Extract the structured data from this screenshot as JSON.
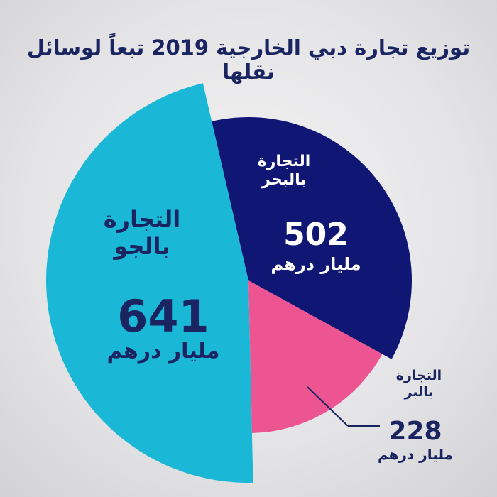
{
  "chart_data": {
    "type": "pie",
    "title": "توزيع تجارة دبي الخارجية 2019 تبعاً لوسائل نقلها",
    "unit": "مليار درهم",
    "slices": [
      {
        "label": "التجارة بالبحر",
        "label_line1": "التجارة",
        "label_line2": "بالبحر",
        "value": 502,
        "value_text": "502",
        "color": "#0f1673"
      },
      {
        "label": "التجارة بالبر",
        "label_line1": "التجارة",
        "label_line2": "بالبر",
        "value": 228,
        "value_text": "228",
        "color": "#ec5591"
      },
      {
        "label": "التجارة بالجو",
        "label_line1": "التجارة",
        "label_line2": "بالجو",
        "value": 641,
        "value_text": "641",
        "color": "#1ab8d6"
      }
    ]
  }
}
